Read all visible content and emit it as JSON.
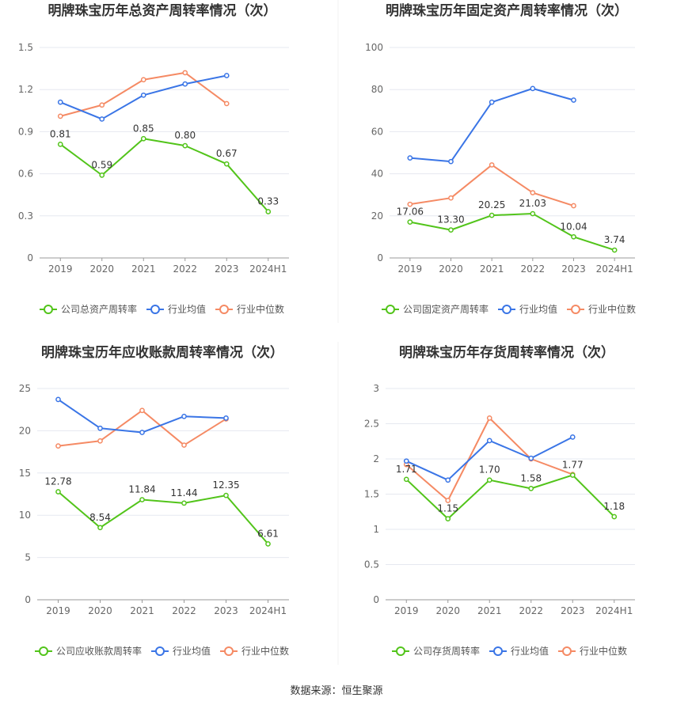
{
  "source_label": "数据来源：恒生聚源",
  "colors": {
    "company": "#52c41a",
    "avg": "#3a75e6",
    "median": "#f58a64",
    "grid": "#e6e8f0",
    "axis": "#999999",
    "tick": "#666666",
    "title": "#333333"
  },
  "chart_data": [
    {
      "type": "line",
      "title": "明牌珠宝历年总资产周转率情况（次）",
      "categories": [
        "2019",
        "2020",
        "2021",
        "2022",
        "2023",
        "2024H1"
      ],
      "ylim": [
        0,
        1.5
      ],
      "yticks": [
        "0",
        "0.3",
        "0.6",
        "0.9",
        "1.2",
        "1.5"
      ],
      "series": [
        {
          "name": "公司总资产周转率",
          "role": "company",
          "values": [
            0.81,
            0.59,
            0.85,
            0.8,
            0.67,
            0.33
          ],
          "labels": [
            "0.81",
            "0.59",
            "0.85",
            "0.80",
            "0.67",
            "0.33"
          ]
        },
        {
          "name": "行业均值",
          "role": "avg",
          "values": [
            1.11,
            0.99,
            1.16,
            1.24,
            1.3,
            null
          ]
        },
        {
          "name": "行业中位数",
          "role": "median",
          "values": [
            1.01,
            1.09,
            1.27,
            1.32,
            1.1,
            null
          ]
        }
      ]
    },
    {
      "type": "line",
      "title": "明牌珠宝历年固定资产周转率情况（次）",
      "categories": [
        "2019",
        "2020",
        "2021",
        "2022",
        "2023",
        "2024H1"
      ],
      "ylim": [
        0,
        100
      ],
      "yticks": [
        "0",
        "20",
        "40",
        "60",
        "80",
        "100"
      ],
      "series": [
        {
          "name": "公司固定资产周转率",
          "role": "company",
          "values": [
            17.06,
            13.3,
            20.25,
            21.03,
            10.04,
            3.74
          ],
          "labels": [
            "17.06",
            "13.30",
            "20.25",
            "21.03",
            "10.04",
            "3.74"
          ]
        },
        {
          "name": "行业均值",
          "role": "avg",
          "values": [
            47.5,
            45.8,
            74.0,
            80.5,
            75.0,
            null
          ]
        },
        {
          "name": "行业中位数",
          "role": "median",
          "values": [
            25.5,
            28.5,
            44.2,
            31.0,
            24.8,
            null
          ]
        }
      ]
    },
    {
      "type": "line",
      "title": "明牌珠宝历年应收账款周转率情况（次）",
      "categories": [
        "2019",
        "2020",
        "2021",
        "2022",
        "2023",
        "2024H1"
      ],
      "ylim": [
        0,
        25
      ],
      "yticks": [
        "0",
        "5",
        "10",
        "15",
        "20",
        "25"
      ],
      "series": [
        {
          "name": "公司应收账款周转率",
          "role": "company",
          "values": [
            12.78,
            8.54,
            11.84,
            11.44,
            12.35,
            6.61
          ],
          "labels": [
            "12.78",
            "8.54",
            "11.84",
            "11.44",
            "12.35",
            "6.61"
          ]
        },
        {
          "name": "行业均值",
          "role": "avg",
          "values": [
            23.7,
            20.3,
            19.8,
            21.7,
            21.5,
            null
          ]
        },
        {
          "name": "行业中位数",
          "role": "median",
          "values": [
            18.2,
            18.8,
            22.4,
            18.3,
            21.4,
            null
          ]
        }
      ]
    },
    {
      "type": "line",
      "title": "明牌珠宝历年存货周转率情况（次）",
      "categories": [
        "2019",
        "2020",
        "2021",
        "2022",
        "2023",
        "2024H1"
      ],
      "ylim": [
        0,
        3
      ],
      "yticks": [
        "0",
        "0.5",
        "1",
        "1.5",
        "2",
        "2.5",
        "3"
      ],
      "series": [
        {
          "name": "公司存货周转率",
          "role": "company",
          "values": [
            1.71,
            1.15,
            1.7,
            1.58,
            1.77,
            1.18
          ],
          "labels": [
            "1.71",
            "1.15",
            "1.70",
            "1.58",
            "1.77",
            "1.18"
          ]
        },
        {
          "name": "行业均值",
          "role": "avg",
          "values": [
            1.97,
            1.7,
            2.26,
            2.01,
            2.31,
            null
          ]
        },
        {
          "name": "行业中位数",
          "role": "median",
          "values": [
            1.92,
            1.41,
            2.58,
            2.0,
            1.78,
            null
          ]
        }
      ]
    }
  ]
}
